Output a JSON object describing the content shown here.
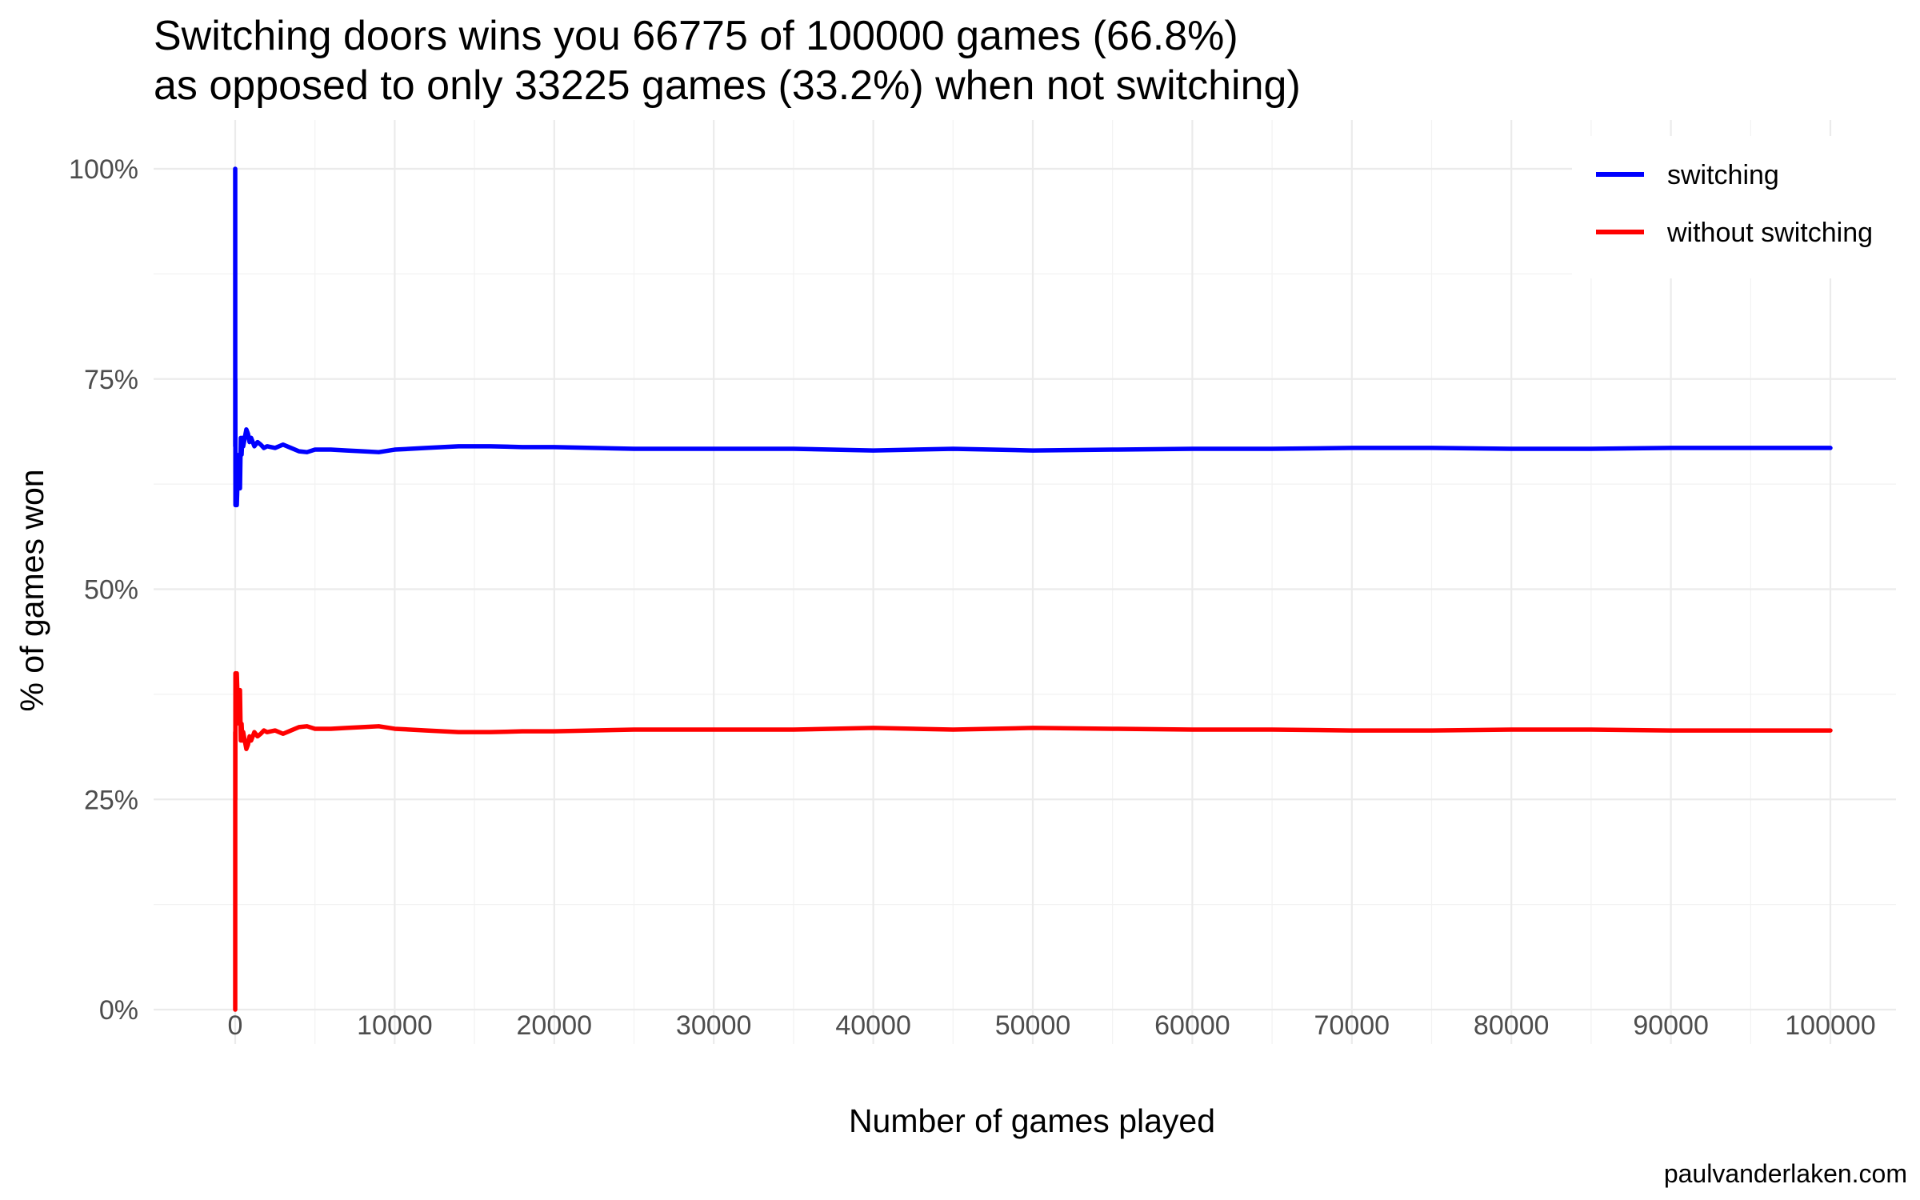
{
  "chart_data": {
    "type": "line",
    "title_lines": [
      "Switching doors wins you 66775 of 100000 games (66.8%)",
      "as opposed to only 33225 games (33.2%) when not switching)"
    ],
    "xlabel": "Number of games played",
    "ylabel": "% of games won",
    "caption": "paulvanderlaken.com",
    "xlim": [
      0,
      100000
    ],
    "ylim": [
      0,
      1
    ],
    "x_ticks": [
      0,
      10000,
      20000,
      30000,
      40000,
      50000,
      60000,
      70000,
      80000,
      90000,
      100000
    ],
    "x_tick_labels": [
      "0",
      "10000",
      "20000",
      "30000",
      "40000",
      "50000",
      "60000",
      "70000",
      "80000",
      "90000",
      "100000"
    ],
    "y_ticks": [
      0,
      0.25,
      0.5,
      0.75,
      1.0
    ],
    "y_tick_labels": [
      "0%",
      "25%",
      "50%",
      "75%",
      "100%"
    ],
    "grid": true,
    "legend_position": "top-right",
    "series": [
      {
        "name": "switching",
        "color": "#0000ff",
        "x": [
          1,
          3,
          8,
          15,
          30,
          60,
          100,
          150,
          200,
          250,
          300,
          350,
          400,
          450,
          500,
          600,
          700,
          800,
          900,
          1000,
          1200,
          1400,
          1600,
          1800,
          2000,
          2500,
          3000,
          3500,
          4000,
          4500,
          5000,
          6000,
          7000,
          8000,
          9000,
          10000,
          12000,
          14000,
          16000,
          18000,
          20000,
          25000,
          30000,
          35000,
          40000,
          45000,
          50000,
          55000,
          60000,
          65000,
          70000,
          75000,
          80000,
          85000,
          90000,
          95000,
          100000
        ],
        "y": [
          1.0,
          0.67,
          0.75,
          0.6,
          0.6,
          0.63,
          0.6,
          0.63,
          0.64,
          0.66,
          0.62,
          0.68,
          0.66,
          0.68,
          0.67,
          0.68,
          0.69,
          0.685,
          0.675,
          0.68,
          0.67,
          0.675,
          0.672,
          0.668,
          0.67,
          0.668,
          0.672,
          0.668,
          0.664,
          0.663,
          0.666,
          0.666,
          0.665,
          0.664,
          0.663,
          0.666,
          0.668,
          0.67,
          0.67,
          0.669,
          0.669,
          0.667,
          0.667,
          0.667,
          0.665,
          0.667,
          0.665,
          0.666,
          0.667,
          0.667,
          0.668,
          0.668,
          0.667,
          0.667,
          0.668,
          0.668,
          0.668
        ]
      },
      {
        "name": "without switching",
        "color": "#ff0000",
        "x": [
          1,
          3,
          8,
          15,
          30,
          60,
          100,
          150,
          200,
          250,
          300,
          350,
          400,
          450,
          500,
          600,
          700,
          800,
          900,
          1000,
          1200,
          1400,
          1600,
          1800,
          2000,
          2500,
          3000,
          3500,
          4000,
          4500,
          5000,
          6000,
          7000,
          8000,
          9000,
          10000,
          12000,
          14000,
          16000,
          18000,
          20000,
          25000,
          30000,
          35000,
          40000,
          45000,
          50000,
          55000,
          60000,
          65000,
          70000,
          75000,
          80000,
          85000,
          90000,
          95000,
          100000
        ],
        "y": [
          0.0,
          0.33,
          0.25,
          0.4,
          0.4,
          0.37,
          0.4,
          0.37,
          0.36,
          0.34,
          0.38,
          0.32,
          0.34,
          0.32,
          0.33,
          0.32,
          0.31,
          0.315,
          0.325,
          0.32,
          0.33,
          0.325,
          0.328,
          0.332,
          0.33,
          0.332,
          0.328,
          0.332,
          0.336,
          0.337,
          0.334,
          0.334,
          0.335,
          0.336,
          0.337,
          0.334,
          0.332,
          0.33,
          0.33,
          0.331,
          0.331,
          0.333,
          0.333,
          0.333,
          0.335,
          0.333,
          0.335,
          0.334,
          0.333,
          0.333,
          0.332,
          0.332,
          0.333,
          0.333,
          0.332,
          0.332,
          0.332
        ]
      }
    ]
  }
}
